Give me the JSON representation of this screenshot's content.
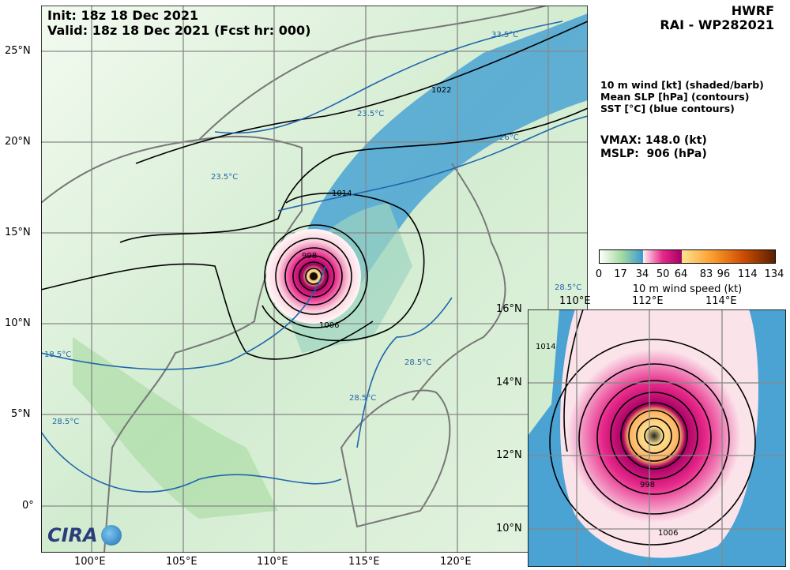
{
  "header": {
    "init": "Init: 18z 18 Dec 2021",
    "valid": "Valid: 18z 18 Dec 2021 (Fcst hr: 000)",
    "model": "HWRF",
    "storm": "RAI - WP282021"
  },
  "legend": {
    "lines": [
      "10 m wind [kt] (shaded/barb)",
      "Mean SLP [hPa] (contours)",
      "SST [°C] (blue contours)"
    ],
    "vmax": "VMAX: 148.0 (kt)",
    "mslp": "MSLP:  906 (hPa)"
  },
  "colorbar": {
    "label": "10 m wind speed (kt)",
    "ticks": [
      "0",
      "17",
      "34",
      "50",
      "64",
      "83",
      "96",
      "114",
      "134"
    ],
    "colors": [
      "#ffffff",
      "#a6dba0",
      "#3a9bd0",
      "#fde0e6",
      "#e7298a",
      "#a50063",
      "#fee391",
      "#fb9b2c",
      "#cc4c02",
      "#5a2000"
    ]
  },
  "main_map": {
    "lon_labels": [
      "100°E",
      "105°E",
      "110°E",
      "115°E",
      "120°E"
    ],
    "lat_labels": [
      "25°N",
      "20°N",
      "15°N",
      "10°N",
      "5°N",
      "0°"
    ],
    "slp_labels": [
      "1014",
      "1006",
      "1022",
      "998"
    ],
    "sst_labels": [
      "23.5°C",
      "26°C",
      "28.5°C",
      "28.5°C",
      "28.5°C",
      "18.5°C",
      "28.5°C",
      "33.5°C",
      "23.5°C"
    ],
    "storm_center": {
      "lon": 112.2,
      "lat": 12.4
    }
  },
  "inset_map": {
    "lon_labels": [
      "110°E",
      "112°E",
      "114°E"
    ],
    "lat_labels": [
      "16°N",
      "14°N",
      "12°N",
      "10°N"
    ],
    "slp_labels": [
      "1014",
      "998",
      "1006"
    ]
  },
  "logo": {
    "text": "CIRA"
  }
}
